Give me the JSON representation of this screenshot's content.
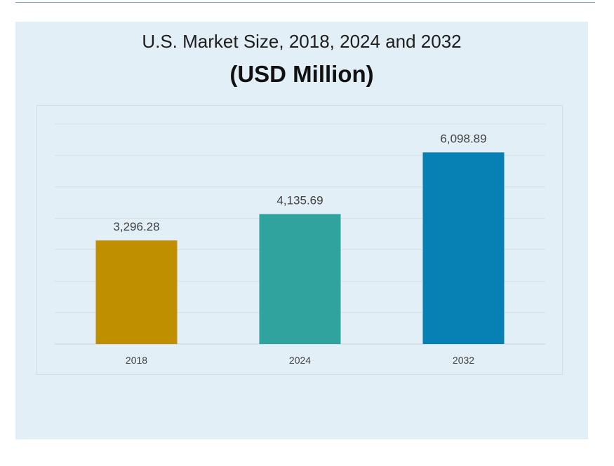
{
  "chart_data": {
    "type": "bar",
    "title": "U.S. Market Size, 2018, 2024 and 2032",
    "subtitle": "(USD Million)",
    "categories": [
      "2018",
      "2024",
      "2032"
    ],
    "values": [
      3296.28,
      4135.69,
      6098.89
    ],
    "value_labels": [
      "3,296.28",
      "4,135.69",
      "6,098.89"
    ],
    "colors": [
      "#c08f00",
      "#31a39f",
      "#0780b3"
    ],
    "ylim": [
      0,
      7000
    ],
    "grid": true,
    "xlabel": "",
    "ylabel": ""
  }
}
